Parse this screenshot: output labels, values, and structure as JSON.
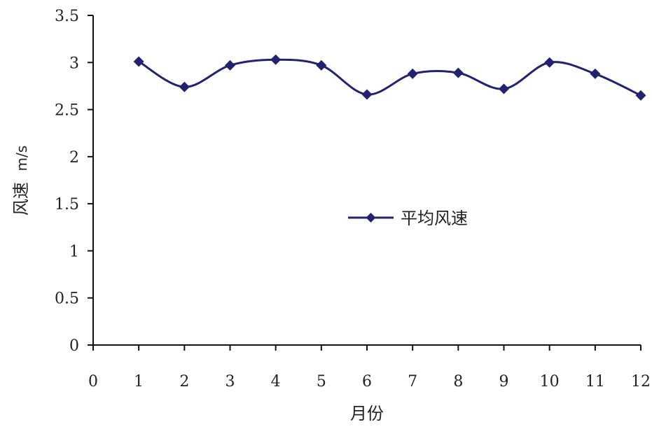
{
  "chart_data": {
    "type": "line",
    "title": "",
    "xlabel": "月份",
    "ylabel_cn": "风速",
    "ylabel_unit": "m/s",
    "x_ticks": [
      "0",
      "1",
      "2",
      "3",
      "4",
      "5",
      "6",
      "7",
      "8",
      "9",
      "10",
      "11",
      "12"
    ],
    "y_ticks": [
      "0",
      "0.5",
      "1",
      "1.5",
      "2",
      "2.5",
      "3",
      "3.5"
    ],
    "xlim": [
      0,
      12
    ],
    "ylim": [
      0,
      3.5
    ],
    "grid": false,
    "legend_position": "center-right",
    "series": [
      {
        "name": "平均风速",
        "color": "#22226e",
        "marker": "diamond",
        "x": [
          1,
          2,
          3,
          4,
          5,
          6,
          7,
          8,
          9,
          10,
          11,
          12
        ],
        "values": [
          3.01,
          2.74,
          2.97,
          3.03,
          2.97,
          2.66,
          2.88,
          2.89,
          2.72,
          3.0,
          2.88,
          2.65
        ]
      }
    ]
  }
}
